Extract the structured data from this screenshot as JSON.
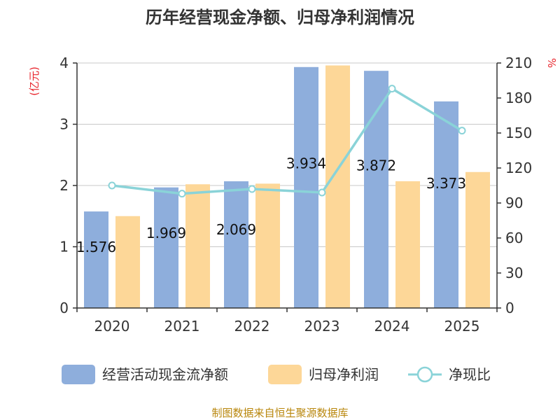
{
  "chart_data": {
    "type": "bar",
    "title": "历年经营现金净额、归母净利润情况",
    "categories": [
      "2020",
      "2021",
      "2022",
      "2023",
      "2024",
      "2025"
    ],
    "series": [
      {
        "name": "经营活动现金流净额",
        "type": "bar",
        "axis": "left",
        "color": "#8eaedc",
        "values": [
          1.576,
          1.969,
          2.069,
          3.934,
          3.872,
          3.373
        ],
        "labels": [
          "1.576",
          "1.969",
          "2.069",
          "3.934",
          "3.872",
          "3.373"
        ]
      },
      {
        "name": "归母净利润",
        "type": "bar",
        "axis": "left",
        "color": "#fdd798",
        "values": [
          1.5,
          2.02,
          2.03,
          3.96,
          2.07,
          2.22
        ]
      },
      {
        "name": "净现比",
        "type": "line",
        "axis": "right",
        "color": "#8ad3d8",
        "values": [
          105,
          98,
          102,
          99,
          188,
          152
        ]
      }
    ],
    "y_left": {
      "unit": "(亿元)",
      "min": 0,
      "max": 4,
      "ticks": [
        "0",
        "1",
        "2",
        "3",
        "4"
      ]
    },
    "y_right": {
      "unit": "%",
      "min": 0,
      "max": 210,
      "ticks": [
        "0",
        "30",
        "60",
        "90",
        "120",
        "150",
        "180",
        "210"
      ]
    },
    "grid": true,
    "legend_position": "bottom",
    "source": "制图数据来自恒生聚源数据库"
  }
}
